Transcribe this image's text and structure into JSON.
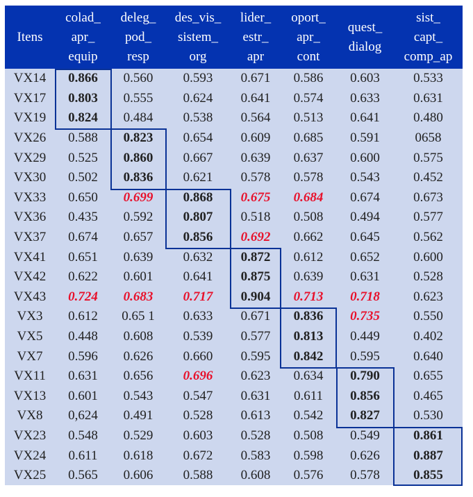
{
  "table": {
    "headers": [
      [
        "Itens"
      ],
      [
        "colad_",
        "apr_",
        "equip"
      ],
      [
        "deleg_",
        "pod_",
        "resp"
      ],
      [
        "des_vis_",
        "sistem_",
        "org"
      ],
      [
        "lider_",
        "estr_",
        "apr"
      ],
      [
        "oport_",
        "apr_",
        "cont"
      ],
      [
        "quest_",
        "dialog"
      ],
      [
        "sist_",
        "capt_",
        "comp_ap"
      ]
    ],
    "rows": [
      {
        "item": "VX14",
        "values": [
          "0.866",
          "0.560",
          "0.593",
          "0.671",
          "0.586",
          "0.603",
          "0.533"
        ]
      },
      {
        "item": "VX17",
        "values": [
          "0.803",
          "0.555",
          "0.624",
          "0.641",
          "0.574",
          "0.633",
          "0.631"
        ]
      },
      {
        "item": "VX19",
        "values": [
          "0.824",
          "0.484",
          "0.538",
          "0.564",
          "0.513",
          "0.641",
          "0.480"
        ]
      },
      {
        "item": "VX26",
        "values": [
          "0.588",
          "0.823",
          "0.654",
          "0.609",
          "0.685",
          "0.591",
          "0658"
        ]
      },
      {
        "item": "VX29",
        "values": [
          "0.525",
          "0.860",
          "0.667",
          "0.639",
          "0.637",
          "0.600",
          "0.575"
        ]
      },
      {
        "item": "VX30",
        "values": [
          "0.502",
          "0.836",
          "0.621",
          "0.578",
          "0.578",
          "0.543",
          "0.452"
        ]
      },
      {
        "item": "VX33",
        "values": [
          "0.650",
          "0.699",
          "0.868",
          "0.675",
          "0.684",
          "0.674",
          "0.673"
        ]
      },
      {
        "item": "VX36",
        "values": [
          "0.435",
          "0.592",
          "0.807",
          "0.518",
          "0.508",
          "0.494",
          "0.577"
        ]
      },
      {
        "item": "VX37",
        "values": [
          "0.674",
          "0.657",
          "0.856",
          "0.692",
          "0.662",
          "0.645",
          "0.562"
        ]
      },
      {
        "item": "VX41",
        "values": [
          "0.651",
          "0.639",
          "0.632",
          "0.872",
          "0.612",
          "0.652",
          "0.600"
        ]
      },
      {
        "item": "VX42",
        "values": [
          "0.622",
          "0.601",
          "0.641",
          "0.875",
          "0.639",
          "0.631",
          "0.528"
        ]
      },
      {
        "item": "VX43",
        "values": [
          "0.724",
          "0.683",
          "0.717",
          "0.904",
          "0.713",
          "0.718",
          "0.623"
        ]
      },
      {
        "item": "VX3",
        "values": [
          "0.612",
          "0.65 1",
          "0.633",
          "0.671",
          "0.836",
          "0.735",
          "0.550"
        ]
      },
      {
        "item": "VX5",
        "values": [
          "0.448",
          "0.608",
          "0.539",
          "0.577",
          "0.813",
          "0.449",
          "0.402"
        ]
      },
      {
        "item": "VX7",
        "values": [
          "0.596",
          "0.626",
          "0.660",
          "0.595",
          "0.842",
          "0.595",
          "0.640"
        ]
      },
      {
        "item": "VX11",
        "values": [
          "0.631",
          "0.656",
          "0.696",
          "0.623",
          "0.634",
          "0.790",
          "0.655"
        ]
      },
      {
        "item": "VX13",
        "values": [
          "0.601",
          "0.543",
          "0.547",
          "0.631",
          "0.611",
          "0.856",
          "0.465"
        ]
      },
      {
        "item": "VX8",
        "values": [
          "0,624",
          "0.491",
          "0.528",
          "0.613",
          "0.542",
          "0.827",
          "0.530"
        ]
      },
      {
        "item": "VX23",
        "values": [
          "0.548",
          "0.529",
          "0.603",
          "0.528",
          "0.508",
          "0.549",
          "0.861"
        ]
      },
      {
        "item": "VX24",
        "values": [
          "0.611",
          "0.618",
          "0.672",
          "0.583",
          "0.598",
          "0.626",
          "0.887"
        ]
      },
      {
        "item": "VX25",
        "values": [
          "0.565",
          "0.606",
          "0.588",
          "0.608",
          "0.576",
          "0.578",
          "0.855"
        ]
      }
    ],
    "bold_cells": [
      [
        0,
        0
      ],
      [
        1,
        0
      ],
      [
        2,
        0
      ],
      [
        3,
        1
      ],
      [
        4,
        1
      ],
      [
        5,
        1
      ],
      [
        6,
        2
      ],
      [
        7,
        2
      ],
      [
        8,
        2
      ],
      [
        9,
        3
      ],
      [
        10,
        3
      ],
      [
        11,
        3
      ],
      [
        12,
        4
      ],
      [
        13,
        4
      ],
      [
        14,
        4
      ],
      [
        15,
        5
      ],
      [
        16,
        5
      ],
      [
        17,
        5
      ],
      [
        18,
        6
      ],
      [
        19,
        6
      ],
      [
        20,
        6
      ]
    ],
    "red_cells": [
      [
        6,
        1
      ],
      [
        6,
        3
      ],
      [
        6,
        4
      ],
      [
        8,
        3
      ],
      [
        11,
        0
      ],
      [
        11,
        1
      ],
      [
        11,
        2
      ],
      [
        11,
        4
      ],
      [
        11,
        5
      ],
      [
        12,
        5
      ],
      [
        15,
        2
      ]
    ],
    "colors": {
      "header_bg": "#0433B0",
      "body_bg": "#CDD7EE",
      "box_border": "#0A3296",
      "highlight_red": "#E8102A"
    }
  }
}
